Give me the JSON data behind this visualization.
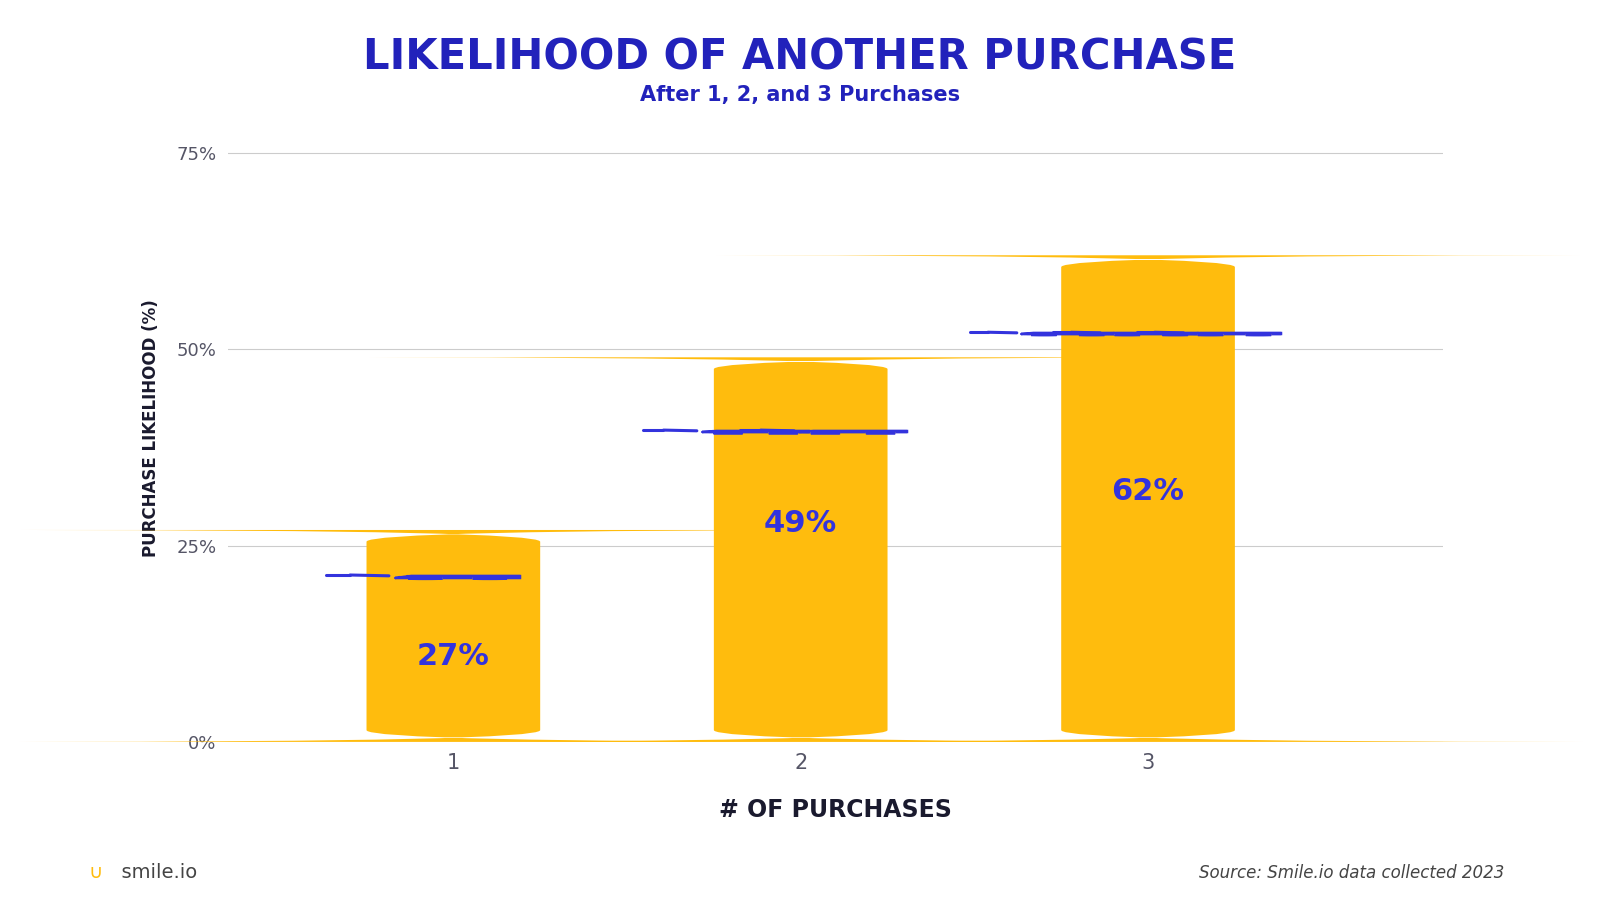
{
  "title": "LIKELIHOOD OF ANOTHER PURCHASE",
  "subtitle": "After 1, 2, and 3 Purchases",
  "xlabel": "# OF PURCHASES",
  "ylabel": "PURCHASE LIKELIHOOD (%)",
  "categories": [
    1,
    2,
    3
  ],
  "values": [
    27,
    49,
    62
  ],
  "bar_color": "#FFBC0D",
  "label_color": "#3333DD",
  "title_color": "#2222BB",
  "subtitle_color": "#2222BB",
  "xlabel_color": "#1a1a2e",
  "ylabel_color": "#1a1a2e",
  "tick_color": "#555566",
  "grid_color": "#cccccc",
  "background_color": "#ffffff",
  "cart_fill": "#FFCC44",
  "cart_line": "#3333DD",
  "yticks": [
    0,
    25,
    50,
    75
  ],
  "ylim": [
    0,
    80
  ],
  "value_labels": [
    "27%",
    "49%",
    "62%"
  ],
  "source_text": "Source: Smile.io data collected 2023",
  "smileio_text": "smile.io",
  "smileio_color": "#444444",
  "smileio_u_color": "#FFBC0D",
  "title_fontsize": 30,
  "subtitle_fontsize": 15,
  "xlabel_fontsize": 17,
  "ylabel_fontsize": 12,
  "value_fontsize": 22,
  "tick_fontsize": 13,
  "source_fontsize": 12
}
